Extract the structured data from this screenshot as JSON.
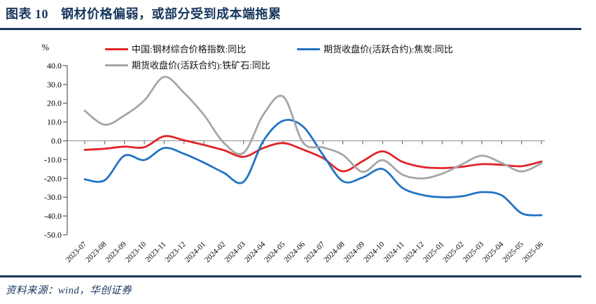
{
  "header": {
    "figure_label": "图表 10",
    "title": "钢材价格偏弱，或部分受到成本端拖累"
  },
  "footer": {
    "source": "资料来源：wind，华创证券"
  },
  "colors": {
    "accent_navy": "#17365D",
    "series_red": "#E02428",
    "series_blue": "#2173C2",
    "series_gray": "#A6A6A6",
    "axis_line": "#595959",
    "zero_line": "#8C8C8C"
  },
  "chart_data": {
    "type": "line",
    "unit_label": "%",
    "grid": false,
    "legend_position": "top",
    "smooth": true,
    "ylim": [
      -50,
      40
    ],
    "y_ticks": {
      "values": [
        40,
        30,
        20,
        10,
        0,
        -10,
        -20,
        -30,
        -40,
        -50
      ],
      "labels": [
        "40.0",
        "30.0",
        "20.0",
        "10.0",
        "0.0",
        "-10.0",
        "-20.0",
        "-30.0",
        "-40.0",
        "-50.0"
      ]
    },
    "x_labels": [
      "2023-07",
      "2023-08",
      "2023-09",
      "2023-10",
      "2023-11",
      "2023-12",
      "2024-01",
      "2024-02",
      "2024-03",
      "2024-04",
      "2024-05",
      "2024-06",
      "2024-07",
      "2024-08",
      "2024-09",
      "2024-10",
      "2024-11",
      "2024-12",
      "2025-01",
      "2025-02",
      "2025-03",
      "2025-04",
      "2025-05",
      "2025-06"
    ],
    "series": [
      {
        "name": "中国:钢材综合价格指数:同比",
        "color": "#E02428",
        "values": [
          -4.8,
          -4.2,
          -3.1,
          -3.4,
          2.4,
          0.3,
          -2.2,
          -5.0,
          -8.5,
          -3.8,
          -1.2,
          -4.7,
          -9.2,
          -16.2,
          -10.8,
          -5.6,
          -11.2,
          -13.9,
          -14.5,
          -13.8,
          -12.4,
          -12.8,
          -13.5,
          -11.0
        ]
      },
      {
        "name": "期货收盘价(活跃合约):焦炭:同比",
        "color": "#2173C2",
        "values": [
          -20.5,
          -21.0,
          -7.9,
          -10.2,
          -3.8,
          -6.9,
          -11.6,
          -17.0,
          -21.8,
          0.0,
          10.7,
          7.5,
          -7.5,
          -21.5,
          -19.5,
          -15.0,
          -25.0,
          -28.8,
          -30.0,
          -29.5,
          -27.3,
          -29.0,
          -38.5,
          -39.6
        ]
      },
      {
        "name": "期货收盘价(活跃合约):铁矿石:同比",
        "color": "#A6A6A6",
        "values": [
          16.0,
          8.6,
          13.5,
          21.5,
          34.0,
          25.5,
          13.8,
          -1.0,
          -6.4,
          14.0,
          23.5,
          -1.0,
          -3.5,
          -7.5,
          -16.5,
          -10.3,
          -18.0,
          -20.0,
          -17.5,
          -12.5,
          -7.9,
          -11.8,
          -16.3,
          -12.0
        ]
      }
    ]
  }
}
